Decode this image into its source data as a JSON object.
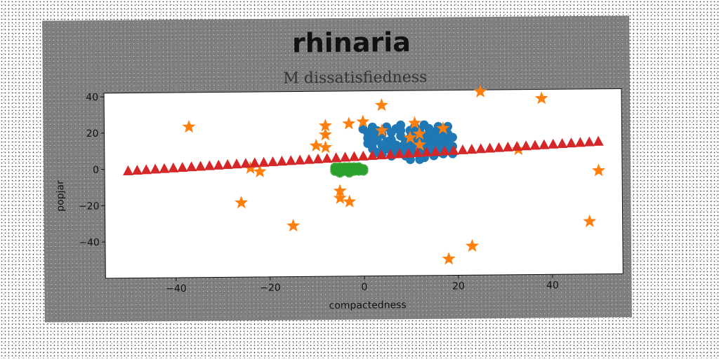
{
  "chart_data": {
    "type": "scatter",
    "title": "rhinaria",
    "subtitle": "M dissatisfiedness",
    "xlabel": "compactedness",
    "ylabel": "popjar",
    "xlim": [
      -55,
      55
    ],
    "ylim": [
      -60,
      42
    ],
    "xticks": [
      -40,
      -20,
      0,
      20,
      40
    ],
    "yticks": [
      -40,
      -20,
      0,
      20,
      40
    ],
    "grid": false,
    "colors": {
      "figure_bg": "#808080",
      "plot_bg": "#ffffff",
      "blue": "#1f77b4",
      "orange": "#ff7f0e",
      "green": "#2ca02c",
      "red": "#d62728"
    },
    "series": [
      {
        "marker": "circle",
        "color": "#1f77b4",
        "points": [
          [
            0,
            21
          ],
          [
            1,
            19
          ],
          [
            1,
            16
          ],
          [
            1,
            13
          ],
          [
            2,
            22
          ],
          [
            2,
            18
          ],
          [
            2,
            10
          ],
          [
            3,
            15
          ],
          [
            3,
            8
          ],
          [
            3,
            20
          ],
          [
            4,
            12
          ],
          [
            4,
            7
          ],
          [
            4,
            18
          ],
          [
            5,
            22
          ],
          [
            5,
            14
          ],
          [
            5,
            10
          ],
          [
            6,
            19
          ],
          [
            6,
            15
          ],
          [
            6,
            9
          ],
          [
            6,
            6
          ],
          [
            7,
            21
          ],
          [
            7,
            12
          ],
          [
            7,
            8
          ],
          [
            8,
            17
          ],
          [
            8,
            11
          ],
          [
            8,
            23
          ],
          [
            9,
            14
          ],
          [
            9,
            9
          ],
          [
            9,
            6
          ],
          [
            10,
            20
          ],
          [
            10,
            16
          ],
          [
            10,
            12
          ],
          [
            10,
            8
          ],
          [
            10,
            4
          ],
          [
            11,
            22
          ],
          [
            11,
            18
          ],
          [
            11,
            14
          ],
          [
            11,
            10
          ],
          [
            12,
            20
          ],
          [
            12,
            15
          ],
          [
            12,
            11
          ],
          [
            12,
            6
          ],
          [
            13,
            23
          ],
          [
            13,
            17
          ],
          [
            13,
            13
          ],
          [
            13,
            9
          ],
          [
            13,
            5
          ],
          [
            14,
            21
          ],
          [
            14,
            16
          ],
          [
            14,
            12
          ],
          [
            14,
            8
          ],
          [
            15,
            19
          ],
          [
            15,
            14
          ],
          [
            15,
            10
          ],
          [
            15,
            6
          ],
          [
            16,
            22
          ],
          [
            16,
            17
          ],
          [
            16,
            12
          ],
          [
            16,
            8
          ],
          [
            17,
            20
          ],
          [
            17,
            15
          ],
          [
            17,
            11
          ],
          [
            17,
            7
          ],
          [
            18,
            18
          ],
          [
            18,
            13
          ],
          [
            18,
            9
          ],
          [
            18,
            22
          ],
          [
            19,
            16
          ],
          [
            19,
            11
          ],
          [
            19,
            7
          ],
          [
            2,
            13
          ],
          [
            4,
            9
          ],
          [
            6,
            12
          ],
          [
            8,
            20
          ],
          [
            12,
            4
          ]
        ]
      },
      {
        "marker": "star",
        "color": "#ff7f0e",
        "points": [
          [
            25,
            41
          ],
          [
            38,
            37
          ],
          [
            -37,
            23
          ],
          [
            -8,
            23
          ],
          [
            -3,
            24
          ],
          [
            0,
            25
          ],
          [
            4,
            34
          ],
          [
            -8,
            18
          ],
          [
            -10,
            12
          ],
          [
            -8,
            11
          ],
          [
            4,
            20
          ],
          [
            10,
            16
          ],
          [
            11,
            24
          ],
          [
            12,
            18
          ],
          [
            12,
            12
          ],
          [
            17,
            21
          ],
          [
            33,
            9
          ],
          [
            -24,
            0
          ],
          [
            -22,
            -2
          ],
          [
            -26,
            -19
          ],
          [
            -15,
            -32
          ],
          [
            -5,
            -13
          ],
          [
            -5,
            -17
          ],
          [
            -3,
            -19
          ],
          [
            18,
            -51
          ],
          [
            23,
            -44
          ],
          [
            48,
            -31
          ],
          [
            50,
            -3
          ]
        ]
      },
      {
        "marker": "spike",
        "color": "#2ca02c",
        "points": [
          [
            -6,
            -1
          ],
          [
            -5,
            0
          ],
          [
            -4,
            -2
          ],
          [
            -3,
            -1
          ],
          [
            -2,
            0
          ],
          [
            -1,
            -2
          ],
          [
            0,
            -1
          ],
          [
            -6,
            -2
          ],
          [
            -5,
            -1
          ],
          [
            -4,
            0
          ],
          [
            -3,
            -3
          ],
          [
            -2,
            -1
          ],
          [
            -1,
            0
          ],
          [
            0,
            -2
          ],
          [
            -6,
            0
          ],
          [
            -4,
            -1
          ],
          [
            -2,
            -2
          ],
          [
            -3,
            0
          ],
          [
            -5,
            -3
          ],
          [
            -1,
            -1
          ]
        ]
      },
      {
        "marker": "triangle",
        "color": "#d62728",
        "line": {
          "x0": -50,
          "x1": 50,
          "y0": -1,
          "y1": 13,
          "count": 53
        }
      }
    ]
  }
}
